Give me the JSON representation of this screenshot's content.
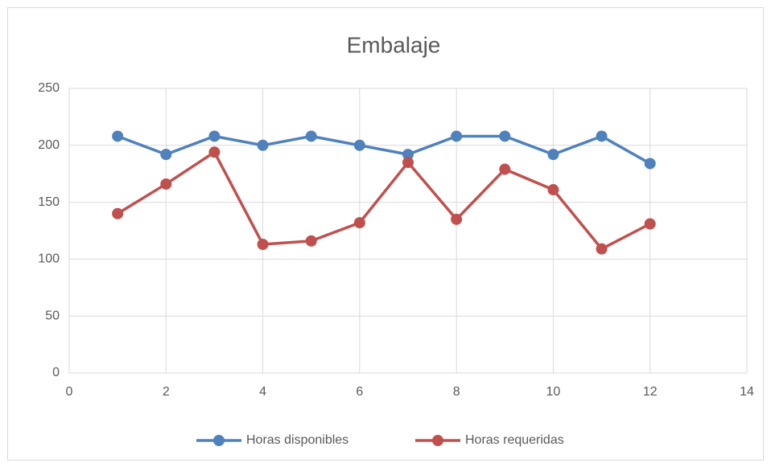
{
  "chart_data": {
    "type": "line",
    "title": "Embalaje",
    "x": [
      1,
      2,
      3,
      4,
      5,
      6,
      7,
      8,
      9,
      10,
      11,
      12
    ],
    "series": [
      {
        "name": "Horas disponibles",
        "color": "#4f81bd",
        "values": [
          208,
          192,
          208,
          200,
          208,
          200,
          192,
          208,
          208,
          192,
          208,
          184
        ]
      },
      {
        "name": "Horas requeridas",
        "color": "#c0504d",
        "values": [
          140,
          166,
          194,
          113,
          116,
          132,
          185,
          135,
          179,
          161,
          109,
          131
        ]
      }
    ],
    "xlim": [
      0,
      14
    ],
    "xticks": [
      0,
      2,
      4,
      6,
      8,
      10,
      12,
      14
    ],
    "ylim": [
      0,
      250
    ],
    "yticks": [
      0,
      50,
      100,
      150,
      200,
      250
    ],
    "grid": true,
    "legend": "bottom"
  }
}
